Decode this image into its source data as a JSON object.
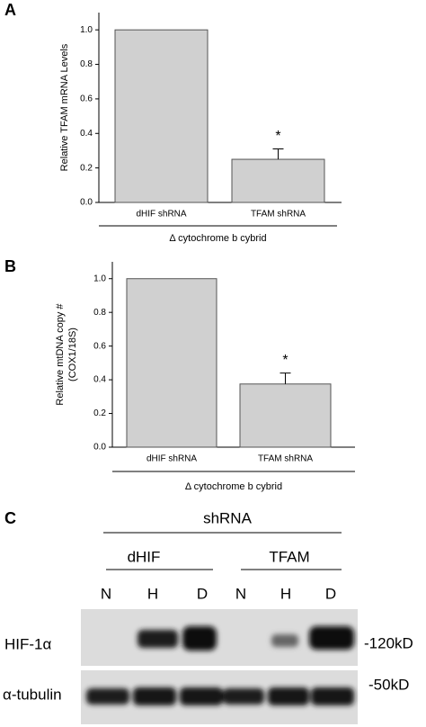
{
  "chart_data": [
    {
      "type": "bar",
      "panel": "A",
      "ylabel": [
        "Relative TFAM mRNA Levels"
      ],
      "categories": [
        "dHIF shRNA",
        "TFAM shRNA"
      ],
      "values": [
        1.0,
        0.25
      ],
      "errors": [
        null,
        0.06
      ],
      "annotation": "*",
      "group_label": "Δ cytochrome b  cybrid",
      "color": "#d0d0d0",
      "ylim": [
        0,
        1.1
      ],
      "yticks": [
        {
          "value": 0,
          "label": "0.0"
        },
        0.2,
        0.4,
        0.6,
        0.8,
        {
          "value": 1,
          "label": "1.0"
        }
      ]
    },
    {
      "type": "bar",
      "panel": "B",
      "ylabel": [
        "Relative mtDNA copy #",
        "(COX1/18S)"
      ],
      "categories": [
        "dHIF shRNA",
        "TFAM shRNA"
      ],
      "values": [
        1.0,
        0.375
      ],
      "errors": [
        null,
        0.065
      ],
      "annotation": "*",
      "group_label": "Δ cytochrome b cybrid",
      "color": "#d0d0d0",
      "ylim": [
        0,
        1.1
      ],
      "yticks": [
        {
          "value": 0,
          "label": "0.0"
        },
        0.2,
        0.4,
        0.6,
        0.8,
        {
          "value": 1,
          "label": "1.0"
        }
      ]
    }
  ],
  "blot": {
    "panel": "C",
    "header": "shRNA",
    "groups": [
      "dHIF",
      "TFAM"
    ],
    "lanes": [
      "N",
      "H",
      "D",
      "N",
      "H",
      "D"
    ],
    "rows": [
      "HIF-1α",
      "α-tubulin"
    ],
    "sizes": [
      "-120kD",
      "-50kD"
    ]
  }
}
